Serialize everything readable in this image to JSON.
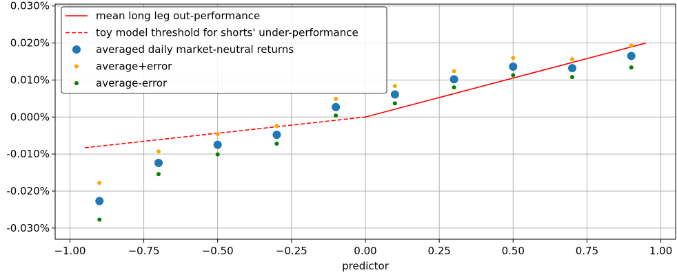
{
  "chart_data": {
    "type": "scatter",
    "xlabel": "predictor",
    "ylabel": "",
    "xlim": [
      -1.05,
      1.05
    ],
    "ylim": [
      -0.033,
      0.0305
    ],
    "x_ticks": [
      -1.0,
      -0.75,
      -0.5,
      -0.25,
      0.0,
      0.25,
      0.5,
      0.75,
      1.0
    ],
    "x_tick_labels": [
      "−1.00",
      "−0.75",
      "−0.50",
      "−0.25",
      "0.00",
      "0.25",
      "0.50",
      "0.75",
      "1.00"
    ],
    "y_ticks": [
      -0.03,
      -0.02,
      -0.01,
      0.0,
      0.01,
      0.02,
      0.03
    ],
    "y_tick_labels": [
      "-0.030%",
      "-0.020%",
      "-0.010%",
      "0.000%",
      "0.010%",
      "0.020%",
      "0.030%"
    ],
    "grid": true,
    "legend_position": "top-left",
    "series": [
      {
        "name": "mean long leg out-performance",
        "kind": "line",
        "style": "solid",
        "color": "#ff0000",
        "x": [
          0.0,
          0.95
        ],
        "y": [
          0.0,
          0.02
        ]
      },
      {
        "name": "toy model threshold for shorts' under-performance",
        "kind": "line",
        "style": "dashed",
        "color": "#ff0000",
        "x": [
          -0.95,
          0.0
        ],
        "y": [
          -0.0083,
          0.0
        ]
      },
      {
        "name": "averaged daily market-neutral returns",
        "kind": "scatter",
        "color": "#1f77b4",
        "size": "large",
        "x": [
          -0.9,
          -0.7,
          -0.5,
          -0.3,
          -0.1,
          0.1,
          0.3,
          0.5,
          0.7,
          0.9
        ],
        "y": [
          -0.0227,
          -0.0124,
          -0.0075,
          -0.0048,
          0.0027,
          0.0061,
          0.0102,
          0.0136,
          0.0132,
          0.0165
        ]
      },
      {
        "name": "average+error",
        "kind": "scatter",
        "color": "#ffa500",
        "size": "small",
        "x": [
          -0.9,
          -0.7,
          -0.5,
          -0.3,
          -0.1,
          0.1,
          0.3,
          0.5,
          0.7,
          0.9
        ],
        "y": [
          -0.0178,
          -0.0093,
          -0.0046,
          -0.0024,
          0.0049,
          0.0084,
          0.0124,
          0.016,
          0.0156,
          0.0193
        ]
      },
      {
        "name": "average-error",
        "kind": "scatter",
        "color": "#008000",
        "size": "small",
        "x": [
          -0.9,
          -0.7,
          -0.5,
          -0.3,
          -0.1,
          0.1,
          0.3,
          0.5,
          0.7,
          0.9
        ],
        "y": [
          -0.0277,
          -0.0154,
          -0.0101,
          -0.0072,
          0.0004,
          0.0037,
          0.008,
          0.0113,
          0.0108,
          0.0134
        ]
      }
    ]
  }
}
